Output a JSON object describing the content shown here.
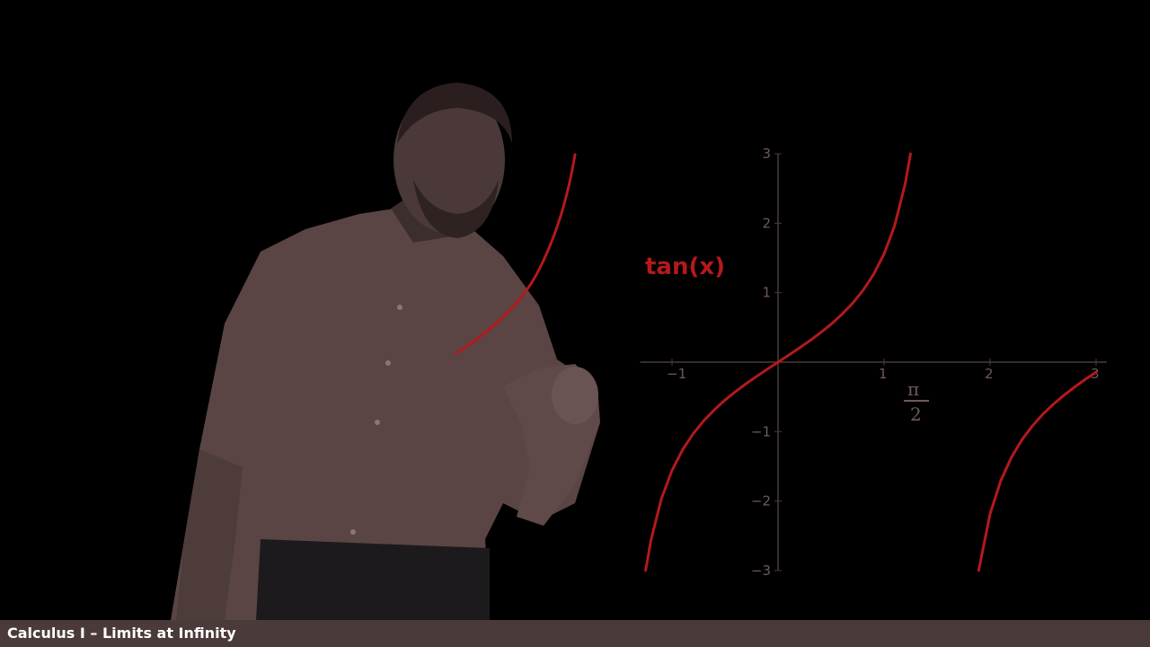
{
  "caption": {
    "text": "Calculus I – Limits at Infinity"
  },
  "scene": {
    "person_description": "instructor in a light button-down shirt pointing at the projected graph",
    "board": {
      "function_label": "tan(x)",
      "handwritten_note": {
        "numerator": "π",
        "denominator": "2"
      }
    }
  },
  "chart_data": {
    "type": "line",
    "function": "tan(x)",
    "xlim": [
      -1.3,
      3.1
    ],
    "ylim": [
      -3,
      3
    ],
    "x_ticks": [
      {
        "value": -1,
        "label": "−1"
      },
      {
        "value": 1,
        "label": "1"
      },
      {
        "value": 2,
        "label": "2"
      },
      {
        "value": 3,
        "label": "3"
      }
    ],
    "y_ticks": [
      {
        "value": 3,
        "label": "3"
      },
      {
        "value": 2,
        "label": "2"
      },
      {
        "value": 1,
        "label": "1"
      },
      {
        "value": -1,
        "label": "−1"
      },
      {
        "value": -2,
        "label": "−2"
      },
      {
        "value": -3,
        "label": "−3"
      }
    ],
    "series": [
      {
        "x": [
          -1.249,
          -1.2,
          -1.1,
          -1.0,
          -0.9,
          -0.8,
          -0.7,
          -0.6,
          -0.5,
          -0.4,
          -0.3,
          -0.2,
          -0.1,
          0.0,
          0.1,
          0.2,
          0.3,
          0.4,
          0.5,
          0.6,
          0.7,
          0.8,
          0.9,
          1.0,
          1.1,
          1.2,
          1.249
        ],
        "y": [
          -3.0,
          -2.572,
          -1.965,
          -1.557,
          -1.26,
          -1.03,
          -0.842,
          -0.684,
          -0.546,
          -0.423,
          -0.309,
          -0.203,
          -0.1,
          0.0,
          0.1,
          0.203,
          0.309,
          0.423,
          0.546,
          0.684,
          0.842,
          1.03,
          1.26,
          1.557,
          1.965,
          2.572,
          3.0
        ]
      },
      {
        "x": [
          1.892,
          2.0,
          2.1,
          2.2,
          2.3,
          2.4,
          2.5,
          2.6,
          2.7,
          2.8,
          2.9,
          3.0
        ],
        "y": [
          -3.0,
          -2.185,
          -1.71,
          -1.374,
          -1.119,
          -0.916,
          -0.747,
          -0.602,
          -0.473,
          -0.356,
          -0.246,
          -0.143
        ]
      }
    ],
    "colors": {
      "curve": "#b4191c",
      "axis": "#4a3b3a",
      "ticks": "#6f5a58"
    }
  }
}
